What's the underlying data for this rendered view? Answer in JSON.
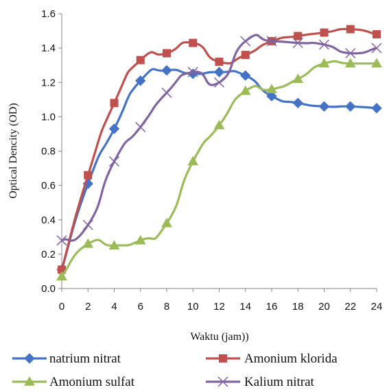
{
  "chart_data": {
    "type": "line",
    "title": "",
    "xlabel": "Waktu (jam))",
    "ylabel": "Optical Dencity (OD)",
    "x": [
      0,
      2,
      4,
      6,
      8,
      10,
      12,
      14,
      16,
      18,
      20,
      22,
      24
    ],
    "xlim": [
      0,
      24
    ],
    "ylim": [
      0,
      1.6
    ],
    "yticks": [
      "0.0",
      "0.2",
      "0.4",
      "0.6",
      "0.8",
      "1.0",
      "1.2",
      "1.4",
      "1.6"
    ],
    "xticks": [
      "0",
      "2",
      "4",
      "6",
      "8",
      "10",
      "12",
      "14",
      "16",
      "18",
      "20",
      "22",
      "24"
    ],
    "grid": false,
    "legend": "bottom",
    "series": [
      {
        "name": "natrium nitrat",
        "color": "#4472c4",
        "marker": "diamond",
        "values": [
          0.11,
          0.61,
          0.93,
          1.21,
          1.27,
          1.25,
          1.26,
          1.24,
          1.12,
          1.08,
          1.06,
          1.06,
          1.05
        ]
      },
      {
        "name": "Amonium klorida",
        "color": "#c0504d",
        "marker": "square",
        "values": [
          0.11,
          0.66,
          1.08,
          1.33,
          1.37,
          1.43,
          1.32,
          1.36,
          1.44,
          1.47,
          1.49,
          1.51,
          1.48
        ]
      },
      {
        "name": "Amonium sulfat",
        "color": "#9bbb59",
        "marker": "triangle",
        "values": [
          0.07,
          0.26,
          0.25,
          0.28,
          0.38,
          0.74,
          0.95,
          1.15,
          1.16,
          1.22,
          1.31,
          1.31,
          1.31
        ]
      },
      {
        "name": "Kalium nitrat",
        "color": "#8064a2",
        "marker": "x",
        "values": [
          0.28,
          0.37,
          0.74,
          0.94,
          1.14,
          1.26,
          1.2,
          1.44,
          1.44,
          1.43,
          1.42,
          1.37,
          1.4
        ]
      }
    ]
  }
}
